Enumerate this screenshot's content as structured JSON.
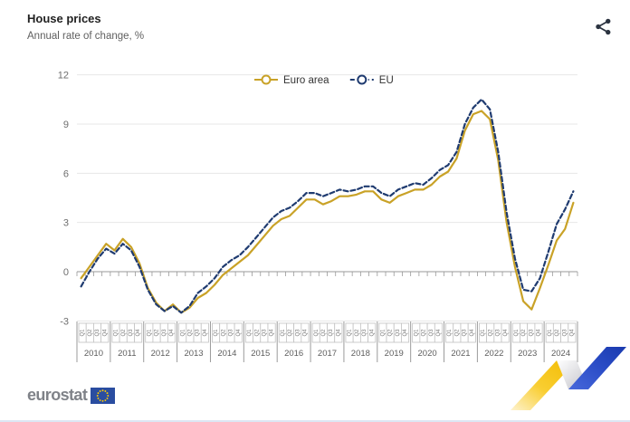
{
  "header": {
    "title": "House prices",
    "subtitle": "Annual rate of change, %"
  },
  "toolbar": {
    "share_icon": "share-icon"
  },
  "footer": {
    "logo_text": "eurostat",
    "flag_icon": "eu-flag-icon"
  },
  "branding": {
    "ribbon_yellow": "#F6C500",
    "ribbon_grey": "#CDCDD2",
    "ribbon_blue": "#2448C0",
    "flag_blue": "#2A4DA0",
    "star_yellow": "#FFCC00",
    "icon_color": "#2B3340"
  },
  "chart_data": {
    "type": "line",
    "title": "House prices",
    "subtitle": "Annual rate of change, %",
    "ylim": [
      -3,
      12
    ],
    "yticks": [
      -3,
      0,
      3,
      6,
      9,
      12
    ],
    "grid": true,
    "legend_position": "top-center",
    "x": {
      "years": [
        2010,
        2011,
        2012,
        2013,
        2014,
        2015,
        2016,
        2017,
        2018,
        2019,
        2020,
        2021,
        2022,
        2023,
        2024
      ],
      "quarters_per_year": [
        "Q1",
        "Q2",
        "Q3",
        "Q4"
      ]
    },
    "series": [
      {
        "name": "Euro area",
        "color": "#C9A227",
        "line_style": "solid",
        "marker": "circle",
        "values": [
          -0.4,
          0.3,
          1.0,
          1.7,
          1.3,
          2.0,
          1.5,
          0.5,
          -1.0,
          -1.9,
          -2.4,
          -2.0,
          -2.5,
          -2.2,
          -1.6,
          -1.3,
          -0.8,
          -0.2,
          0.2,
          0.6,
          1.0,
          1.6,
          2.2,
          2.8,
          3.2,
          3.4,
          3.9,
          4.4,
          4.4,
          4.1,
          4.3,
          4.6,
          4.6,
          4.7,
          4.9,
          4.9,
          4.4,
          4.2,
          4.6,
          4.8,
          5.0,
          5.0,
          5.3,
          5.8,
          6.1,
          6.9,
          8.6,
          9.6,
          9.8,
          9.3,
          6.8,
          3.0,
          0.3,
          -1.8,
          -2.3,
          -1.0,
          0.4,
          1.9,
          2.6,
          4.2
        ]
      },
      {
        "name": "EU",
        "color": "#1F3B70",
        "line_style": "dashed",
        "marker": "circle",
        "values": [
          -0.9,
          0.0,
          0.8,
          1.4,
          1.1,
          1.7,
          1.3,
          0.3,
          -1.1,
          -2.0,
          -2.4,
          -2.1,
          -2.5,
          -2.1,
          -1.3,
          -0.9,
          -0.4,
          0.3,
          0.7,
          1.0,
          1.5,
          2.1,
          2.7,
          3.3,
          3.7,
          3.9,
          4.3,
          4.8,
          4.8,
          4.6,
          4.8,
          5.0,
          4.9,
          5.0,
          5.2,
          5.2,
          4.8,
          4.6,
          5.0,
          5.2,
          5.4,
          5.3,
          5.7,
          6.2,
          6.5,
          7.3,
          9.0,
          10.0,
          10.5,
          9.9,
          7.3,
          3.6,
          0.8,
          -1.1,
          -1.2,
          -0.4,
          1.2,
          2.9,
          3.8,
          4.9
        ]
      }
    ]
  }
}
